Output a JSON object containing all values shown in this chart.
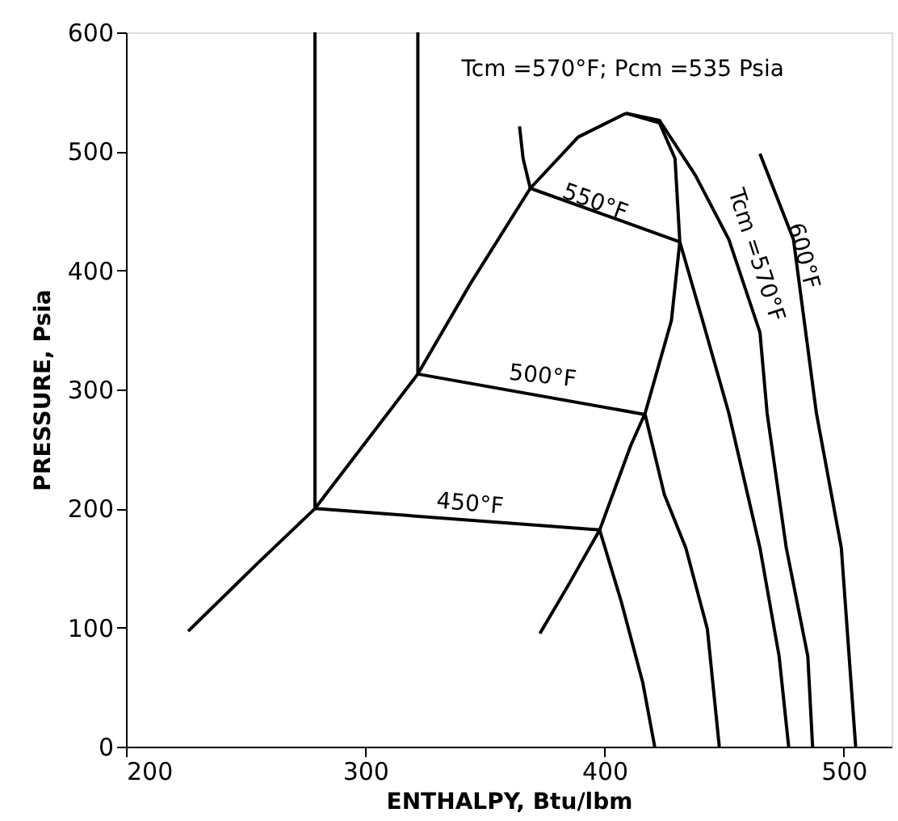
{
  "chart_data": {
    "type": "line",
    "xlabel": "ENTHALPY, Btu/lbm",
    "ylabel": "PRESSURE, Psia",
    "xlim": [
      200,
      520
    ],
    "ylim": [
      0,
      600
    ],
    "xticks": [
      200,
      300,
      400,
      500
    ],
    "yticks": [
      0,
      100,
      200,
      300,
      400,
      500,
      600
    ],
    "grid": false,
    "marker": "none",
    "line_style": "solid",
    "series": [
      {
        "color": "#000000",
        "x": [
          226,
          255,
          279,
          322,
          344,
          369,
          389,
          409
        ],
        "values": [
          97,
          154,
          200,
          313,
          389,
          469,
          512,
          532
        ]
      },
      {
        "color": "#000000",
        "x": [
          409,
          423,
          429.5,
          431.5,
          428,
          417,
          411,
          398,
          385,
          373
        ],
        "values": [
          532,
          524,
          494,
          424,
          358,
          280,
          253,
          182,
          136,
          95
        ]
      },
      {
        "color": "#000000",
        "x": [
          364.5,
          366,
          369
        ],
        "values": [
          521,
          494,
          469
        ]
      },
      {
        "color": "#000000",
        "x": [
          369,
          431.5
        ],
        "values": [
          469,
          424
        ]
      },
      {
        "color": "#000000",
        "x": [
          322,
          417
        ],
        "values": [
          313,
          279
        ]
      },
      {
        "color": "#000000",
        "x": [
          279,
          398
        ],
        "values": [
          200,
          182
        ]
      },
      {
        "color": "#000000",
        "x": [
          279,
          279
        ],
        "values": [
          200,
          600
        ]
      },
      {
        "color": "#000000",
        "x": [
          322,
          322
        ],
        "values": [
          313,
          600
        ]
      },
      {
        "color": "#000000",
        "x": [
          398,
          407,
          416,
          421
        ],
        "values": [
          182,
          122,
          54,
          0
        ]
      },
      {
        "color": "#000000",
        "x": [
          417,
          425,
          434,
          443,
          448
        ],
        "values": [
          279,
          212,
          167,
          99,
          0
        ]
      },
      {
        "color": "#000000",
        "x": [
          431.5,
          441,
          452,
          465,
          473,
          477
        ],
        "values": [
          424,
          358,
          280,
          167,
          76,
          0
        ]
      },
      {
        "color": "#000000",
        "x": [
          409,
          423,
          438,
          452,
          465,
          468,
          476,
          485,
          487
        ],
        "values": [
          532,
          526,
          480,
          426,
          348,
          280,
          167,
          76,
          0
        ]
      },
      {
        "color": "#000000",
        "x": [
          465,
          479,
          488.6,
          499,
          505
        ],
        "values": [
          498,
          426,
          280,
          167,
          0
        ]
      }
    ],
    "annotations": [
      {
        "text": "Tcm =570°F; Pcm =535 Psia",
        "x": 409,
        "y": 535
      },
      {
        "text": "550°F",
        "x": 396,
        "y": 457
      },
      "500°F",
      "450°F",
      "Tcm =570°F",
      {
        "text": "600°F",
        "x": 483,
        "y": 412
      }
    ]
  }
}
